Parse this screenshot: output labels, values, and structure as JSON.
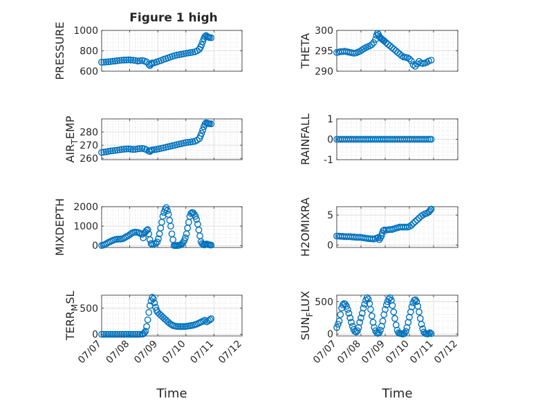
{
  "figure_title": "Figure 1 high",
  "chart_data": [
    {
      "id": "pressure",
      "type": "scatter",
      "title": "Figure 1 high",
      "ylabel": "PRESSURE",
      "xlim": [
        0,
        5
      ],
      "ylim": [
        600,
        1000
      ],
      "yticks": [
        600,
        800,
        1000
      ],
      "xticks": [
        0,
        1,
        2,
        3,
        4,
        5
      ],
      "xticklabels": [],
      "xlabel": "",
      "grid": true,
      "minor_grid": true,
      "x": [
        0.0,
        0.08,
        0.16,
        0.24,
        0.32,
        0.4,
        0.48,
        0.56,
        0.64,
        0.72,
        0.8,
        0.88,
        0.96,
        1.04,
        1.12,
        1.2,
        1.28,
        1.36,
        1.44,
        1.52,
        1.6,
        1.68,
        1.72,
        1.76,
        1.8,
        1.88,
        1.96,
        2.04,
        2.12,
        2.2,
        2.28,
        2.36,
        2.44,
        2.52,
        2.6,
        2.68,
        2.76,
        2.84,
        2.92,
        3.0,
        3.08,
        3.16,
        3.24,
        3.32,
        3.4,
        3.48,
        3.52,
        3.56,
        3.6,
        3.64,
        3.68,
        3.72,
        3.76,
        3.8,
        3.84,
        3.9
      ],
      "y": [
        688,
        688,
        690,
        692,
        695,
        698,
        700,
        703,
        706,
        708,
        710,
        710,
        712,
        710,
        708,
        705,
        700,
        702,
        705,
        700,
        690,
        668,
        655,
        670,
        680,
        683,
        690,
        698,
        705,
        715,
        722,
        730,
        738,
        746,
        752,
        758,
        762,
        766,
        770,
        775,
        778,
        782,
        786,
        790,
        800,
        815,
        835,
        860,
        890,
        920,
        940,
        950,
        940,
        935,
        930,
        928
      ]
    },
    {
      "id": "theta",
      "type": "scatter",
      "ylabel": "THETA",
      "xlim": [
        0,
        5
      ],
      "ylim": [
        290,
        300
      ],
      "yticks": [
        290,
        295,
        300
      ],
      "xticks": [
        0,
        1,
        2,
        3,
        4,
        5
      ],
      "xticklabels": [],
      "xlabel": "",
      "grid": true,
      "minor_grid": true,
      "x": [
        0.0,
        0.08,
        0.16,
        0.24,
        0.32,
        0.4,
        0.48,
        0.56,
        0.64,
        0.72,
        0.8,
        0.88,
        0.96,
        1.04,
        1.12,
        1.2,
        1.28,
        1.36,
        1.44,
        1.52,
        1.6,
        1.64,
        1.68,
        1.72,
        1.76,
        1.8,
        1.84,
        1.88,
        1.92,
        1.96,
        2.04,
        2.12,
        2.2,
        2.28,
        2.36,
        2.44,
        2.52,
        2.6,
        2.68,
        2.76,
        2.84,
        2.92,
        3.0,
        3.08,
        3.16,
        3.24,
        3.32,
        3.4,
        3.48,
        3.56,
        3.64,
        3.72,
        3.8,
        3.9
      ],
      "y": [
        294.6,
        294.7,
        294.8,
        294.8,
        294.9,
        294.8,
        294.7,
        294.6,
        294.5,
        294.4,
        294.5,
        294.7,
        294.9,
        295.2,
        295.5,
        295.8,
        296.0,
        296.2,
        296.5,
        297.0,
        297.8,
        298.8,
        299.3,
        299.0,
        298.5,
        298.2,
        298.0,
        297.8,
        297.6,
        297.4,
        297.0,
        296.6,
        296.2,
        295.8,
        295.4,
        295.0,
        294.6,
        294.2,
        293.8,
        293.5,
        293.4,
        293.3,
        293.0,
        292.5,
        291.6,
        291.2,
        291.8,
        292.4,
        292.0,
        291.9,
        292.0,
        292.2,
        292.5,
        292.7
      ]
    },
    {
      "id": "air_temp",
      "type": "scatter",
      "ylabel_base": "AIR",
      "ylabel_sub": "T",
      "ylabel_rest": "EMP",
      "xlim": [
        0,
        5
      ],
      "ylim": [
        259,
        290
      ],
      "yticks": [
        260,
        270,
        280
      ],
      "xticks": [
        0,
        1,
        2,
        3,
        4,
        5
      ],
      "xticklabels": [],
      "xlabel": "",
      "grid": true,
      "minor_grid": true,
      "x": [
        0.0,
        0.08,
        0.16,
        0.24,
        0.32,
        0.4,
        0.48,
        0.56,
        0.64,
        0.72,
        0.8,
        0.88,
        0.96,
        1.04,
        1.12,
        1.2,
        1.28,
        1.36,
        1.44,
        1.52,
        1.6,
        1.68,
        1.72,
        1.76,
        1.8,
        1.88,
        1.96,
        2.04,
        2.12,
        2.2,
        2.28,
        2.36,
        2.44,
        2.52,
        2.6,
        2.68,
        2.76,
        2.84,
        2.92,
        3.0,
        3.08,
        3.16,
        3.24,
        3.32,
        3.4,
        3.48,
        3.52,
        3.56,
        3.6,
        3.64,
        3.68,
        3.72,
        3.76,
        3.8,
        3.84,
        3.9
      ],
      "y": [
        264.5,
        264.8,
        265.0,
        265.3,
        265.6,
        265.8,
        266.0,
        266.3,
        266.5,
        266.8,
        267.0,
        267.1,
        267.2,
        267.0,
        266.8,
        266.9,
        267.2,
        267.4,
        267.5,
        267.2,
        266.5,
        265.5,
        265.2,
        266.0,
        266.4,
        266.6,
        266.9,
        267.2,
        267.6,
        268.0,
        268.4,
        268.8,
        269.2,
        269.6,
        270.0,
        270.4,
        270.8,
        271.2,
        271.6,
        272.0,
        272.2,
        272.4,
        272.7,
        273.0,
        273.8,
        275.0,
        277.0,
        279.0,
        281.5,
        284.0,
        286.0,
        287.0,
        286.8,
        286.5,
        286.3,
        286.2
      ]
    },
    {
      "id": "rainfall",
      "type": "scatter",
      "ylabel": "RAINFALL",
      "xlim": [
        0,
        5
      ],
      "ylim": [
        -1,
        1
      ],
      "yticks": [
        -1,
        0,
        1
      ],
      "xticks": [
        0,
        1,
        2,
        3,
        4,
        5
      ],
      "xticklabels": [],
      "xlabel": "",
      "grid": true,
      "minor_grid": true,
      "x": [
        0.0,
        0.08,
        0.16,
        0.24,
        0.32,
        0.4,
        0.48,
        0.56,
        0.64,
        0.72,
        0.8,
        0.88,
        0.96,
        1.04,
        1.12,
        1.2,
        1.28,
        1.36,
        1.44,
        1.52,
        1.6,
        1.68,
        1.76,
        1.84,
        1.92,
        2.0,
        2.08,
        2.16,
        2.24,
        2.32,
        2.4,
        2.48,
        2.56,
        2.64,
        2.72,
        2.8,
        2.88,
        2.96,
        3.04,
        3.12,
        3.2,
        3.28,
        3.36,
        3.44,
        3.52,
        3.6,
        3.68,
        3.76,
        3.84,
        3.9
      ],
      "y": [
        0,
        0,
        0,
        0,
        0,
        0,
        0,
        0,
        0,
        0,
        0,
        0,
        0,
        0,
        0,
        0,
        0,
        0,
        0,
        0,
        0,
        0,
        0,
        0,
        0,
        0,
        0,
        0,
        0,
        0,
        0,
        0,
        0,
        0,
        0,
        0,
        0,
        0,
        0,
        0,
        0,
        0,
        0,
        0,
        0,
        0,
        0,
        0,
        0,
        0
      ]
    },
    {
      "id": "mixdepth",
      "type": "scatter",
      "ylabel": "MIXDEPTH",
      "xlim": [
        0,
        5
      ],
      "ylim": [
        -100,
        2000
      ],
      "yticks": [
        0,
        1000,
        2000
      ],
      "xticks": [
        0,
        1,
        2,
        3,
        4,
        5
      ],
      "xticklabels": [],
      "xlabel": "",
      "grid": true,
      "minor_grid": true,
      "x": [
        0.0,
        0.06,
        0.12,
        0.18,
        0.24,
        0.3,
        0.36,
        0.42,
        0.48,
        0.54,
        0.6,
        0.66,
        0.72,
        0.78,
        0.84,
        0.9,
        0.96,
        1.02,
        1.08,
        1.14,
        1.2,
        1.26,
        1.32,
        1.38,
        1.44,
        1.48,
        1.52,
        1.56,
        1.6,
        1.64,
        1.68,
        1.72,
        1.76,
        1.8,
        1.86,
        1.92,
        1.98,
        2.02,
        2.06,
        2.1,
        2.14,
        2.18,
        2.22,
        2.26,
        2.3,
        2.34,
        2.38,
        2.42,
        2.46,
        2.5,
        2.54,
        2.58,
        2.62,
        2.66,
        2.7,
        2.74,
        2.78,
        2.82,
        2.86,
        2.9,
        2.94,
        2.98,
        3.02,
        3.06,
        3.1,
        3.14,
        3.18,
        3.22,
        3.26,
        3.3,
        3.34,
        3.38,
        3.42,
        3.46,
        3.5,
        3.54,
        3.58,
        3.62,
        3.66,
        3.7,
        3.74,
        3.78,
        3.82,
        3.86,
        3.9
      ],
      "y": [
        0,
        20,
        60,
        110,
        160,
        200,
        240,
        280,
        310,
        320,
        330,
        330,
        340,
        370,
        420,
        470,
        520,
        580,
        640,
        680,
        690,
        680,
        660,
        620,
        580,
        400,
        650,
        700,
        780,
        820,
        600,
        300,
        100,
        50,
        80,
        120,
        180,
        350,
        600,
        900,
        1200,
        1500,
        1700,
        1850,
        1950,
        1800,
        1600,
        1300,
        1000,
        600,
        300,
        0,
        0,
        0,
        0,
        10,
        20,
        40,
        80,
        150,
        250,
        400,
        600,
        900,
        1200,
        1500,
        1650,
        1700,
        1680,
        1600,
        1500,
        1350,
        1100,
        800,
        500,
        200,
        100,
        50,
        30,
        60,
        80,
        60,
        40,
        30,
        20
      ]
    },
    {
      "id": "h2omixra",
      "type": "scatter",
      "ylabel": "H2OMIXRA",
      "xlim": [
        0,
        5
      ],
      "ylim": [
        -0.4,
        6.4
      ],
      "yticks": [
        0,
        5
      ],
      "xticks": [
        0,
        1,
        2,
        3,
        4,
        5
      ],
      "xticklabels": [],
      "xlabel": "",
      "grid": true,
      "minor_grid": true,
      "x": [
        0.0,
        0.08,
        0.16,
        0.24,
        0.32,
        0.4,
        0.48,
        0.56,
        0.64,
        0.72,
        0.8,
        0.88,
        0.96,
        1.04,
        1.12,
        1.2,
        1.28,
        1.36,
        1.44,
        1.52,
        1.6,
        1.68,
        1.72,
        1.76,
        1.8,
        1.84,
        1.88,
        1.92,
        1.96,
        2.04,
        2.12,
        2.2,
        2.28,
        2.36,
        2.44,
        2.52,
        2.6,
        2.68,
        2.76,
        2.84,
        2.92,
        3.0,
        3.08,
        3.16,
        3.24,
        3.32,
        3.4,
        3.48,
        3.56,
        3.64,
        3.72,
        3.8,
        3.84,
        3.88,
        3.9
      ],
      "y": [
        1.5,
        1.5,
        1.45,
        1.45,
        1.4,
        1.4,
        1.4,
        1.4,
        1.35,
        1.35,
        1.3,
        1.3,
        1.3,
        1.25,
        1.2,
        1.15,
        1.1,
        1.05,
        1.05,
        1.0,
        1.1,
        1.2,
        1.3,
        0.9,
        1.2,
        1.5,
        2.0,
        2.4,
        2.5,
        2.5,
        2.55,
        2.6,
        2.6,
        2.7,
        2.8,
        2.9,
        3.0,
        3.0,
        3.0,
        3.0,
        3.0,
        3.1,
        3.3,
        3.6,
        3.9,
        4.2,
        4.5,
        4.8,
        5.0,
        5.2,
        5.3,
        5.5,
        5.7,
        5.9,
        6.0
      ]
    },
    {
      "id": "terr_msl",
      "type": "scatter",
      "ylabel_base": "TERR",
      "ylabel_sub": "M",
      "ylabel_rest": "SL",
      "xlim": [
        0,
        5
      ],
      "ylim": [
        -30,
        750
      ],
      "yticks": [
        0,
        500
      ],
      "xticks": [
        0,
        1,
        2,
        3,
        4,
        5
      ],
      "xticklabels": [
        "07/07",
        "07/08",
        "07/09",
        "07/10",
        "07/11",
        "07/12"
      ],
      "xlabel": "Time",
      "grid": true,
      "minor_grid": true,
      "x": [
        0.0,
        0.08,
        0.16,
        0.24,
        0.32,
        0.4,
        0.48,
        0.56,
        0.64,
        0.72,
        0.8,
        0.88,
        0.96,
        1.04,
        1.12,
        1.2,
        1.28,
        1.36,
        1.44,
        1.48,
        1.52,
        1.56,
        1.6,
        1.64,
        1.68,
        1.72,
        1.76,
        1.8,
        1.84,
        1.88,
        1.92,
        1.96,
        2.0,
        2.06,
        2.12,
        2.18,
        2.24,
        2.3,
        2.36,
        2.42,
        2.48,
        2.54,
        2.6,
        2.66,
        2.72,
        2.78,
        2.84,
        2.9,
        2.96,
        3.02,
        3.08,
        3.14,
        3.2,
        3.26,
        3.32,
        3.38,
        3.44,
        3.5,
        3.56,
        3.62,
        3.68,
        3.74,
        3.8,
        3.86,
        3.9
      ],
      "y": [
        0,
        0,
        0,
        0,
        0,
        0,
        0,
        0,
        0,
        0,
        0,
        0,
        0,
        0,
        0,
        0,
        0,
        0,
        5,
        10,
        30,
        60,
        150,
        280,
        420,
        550,
        640,
        710,
        680,
        600,
        520,
        460,
        420,
        390,
        360,
        330,
        300,
        270,
        240,
        210,
        190,
        170,
        160,
        155,
        150,
        150,
        150,
        150,
        150,
        155,
        160,
        165,
        170,
        175,
        185,
        195,
        210,
        225,
        240,
        255,
        270,
        240,
        260,
        280,
        300
      ]
    },
    {
      "id": "sun_flux",
      "type": "scatter",
      "ylabel_base": "SUN",
      "ylabel_sub": "F",
      "ylabel_rest": "LUX",
      "xlim": [
        0,
        5
      ],
      "ylim": [
        -30,
        600
      ],
      "yticks": [
        0,
        500
      ],
      "xticks": [
        0,
        1,
        2,
        3,
        4,
        5
      ],
      "xticklabels": [
        "07/07",
        "07/08",
        "07/09",
        "07/10",
        "07/11",
        "07/12"
      ],
      "xlabel": "Time",
      "grid": true,
      "minor_grid": true,
      "x": [
        0.0,
        0.05,
        0.1,
        0.15,
        0.2,
        0.25,
        0.3,
        0.35,
        0.4,
        0.45,
        0.5,
        0.55,
        0.6,
        0.65,
        0.7,
        0.75,
        0.8,
        0.85,
        0.9,
        0.95,
        1.0,
        1.05,
        1.1,
        1.15,
        1.2,
        1.25,
        1.3,
        1.35,
        1.4,
        1.45,
        1.5,
        1.55,
        1.6,
        1.65,
        1.7,
        1.75,
        1.8,
        1.85,
        1.9,
        1.95,
        2.0,
        2.05,
        2.1,
        2.15,
        2.2,
        2.25,
        2.3,
        2.35,
        2.4,
        2.45,
        2.5,
        2.55,
        2.6,
        2.65,
        2.7,
        2.75,
        2.8,
        2.85,
        2.9,
        2.95,
        3.0,
        3.05,
        3.1,
        3.15,
        3.2,
        3.25,
        3.3,
        3.35,
        3.4,
        3.45,
        3.5,
        3.55,
        3.6,
        3.65,
        3.7,
        3.75,
        3.8,
        3.85,
        3.9
      ],
      "y": [
        100,
        150,
        200,
        300,
        400,
        450,
        470,
        460,
        430,
        380,
        320,
        250,
        180,
        120,
        70,
        40,
        30,
        50,
        100,
        180,
        250,
        320,
        400,
        460,
        520,
        560,
        540,
        470,
        380,
        280,
        180,
        100,
        50,
        20,
        10,
        20,
        60,
        120,
        200,
        300,
        380,
        450,
        500,
        540,
        560,
        520,
        440,
        340,
        240,
        140,
        60,
        20,
        10,
        5,
        0,
        0,
        10,
        40,
        100,
        180,
        260,
        340,
        420,
        480,
        520,
        530,
        500,
        430,
        340,
        240,
        150,
        80,
        30,
        10,
        5,
        0,
        10,
        20,
        5
      ]
    }
  ]
}
